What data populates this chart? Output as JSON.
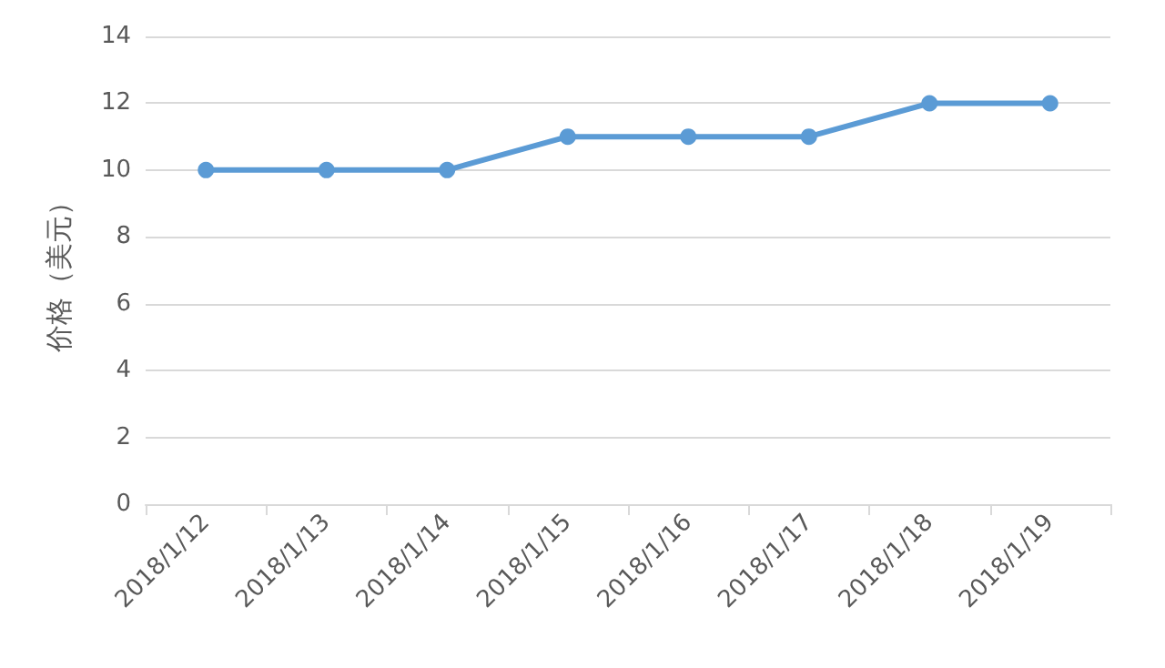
{
  "chart_data": {
    "type": "line",
    "ylabel": "价格（美元）",
    "categories": [
      "2018/1/12",
      "2018/1/13",
      "2018/1/14",
      "2018/1/15",
      "2018/1/16",
      "2018/1/17",
      "2018/1/18",
      "2018/1/19"
    ],
    "series": [
      {
        "color": "#5b9bd5",
        "values": [
          10,
          10,
          10,
          11,
          11,
          11,
          12,
          12
        ]
      }
    ],
    "ylim": [
      0,
      14
    ],
    "yticks": [
      0,
      2,
      4,
      6,
      8,
      10,
      12,
      14
    ],
    "grid": "y",
    "marker": "circle",
    "line_style": "solid"
  }
}
